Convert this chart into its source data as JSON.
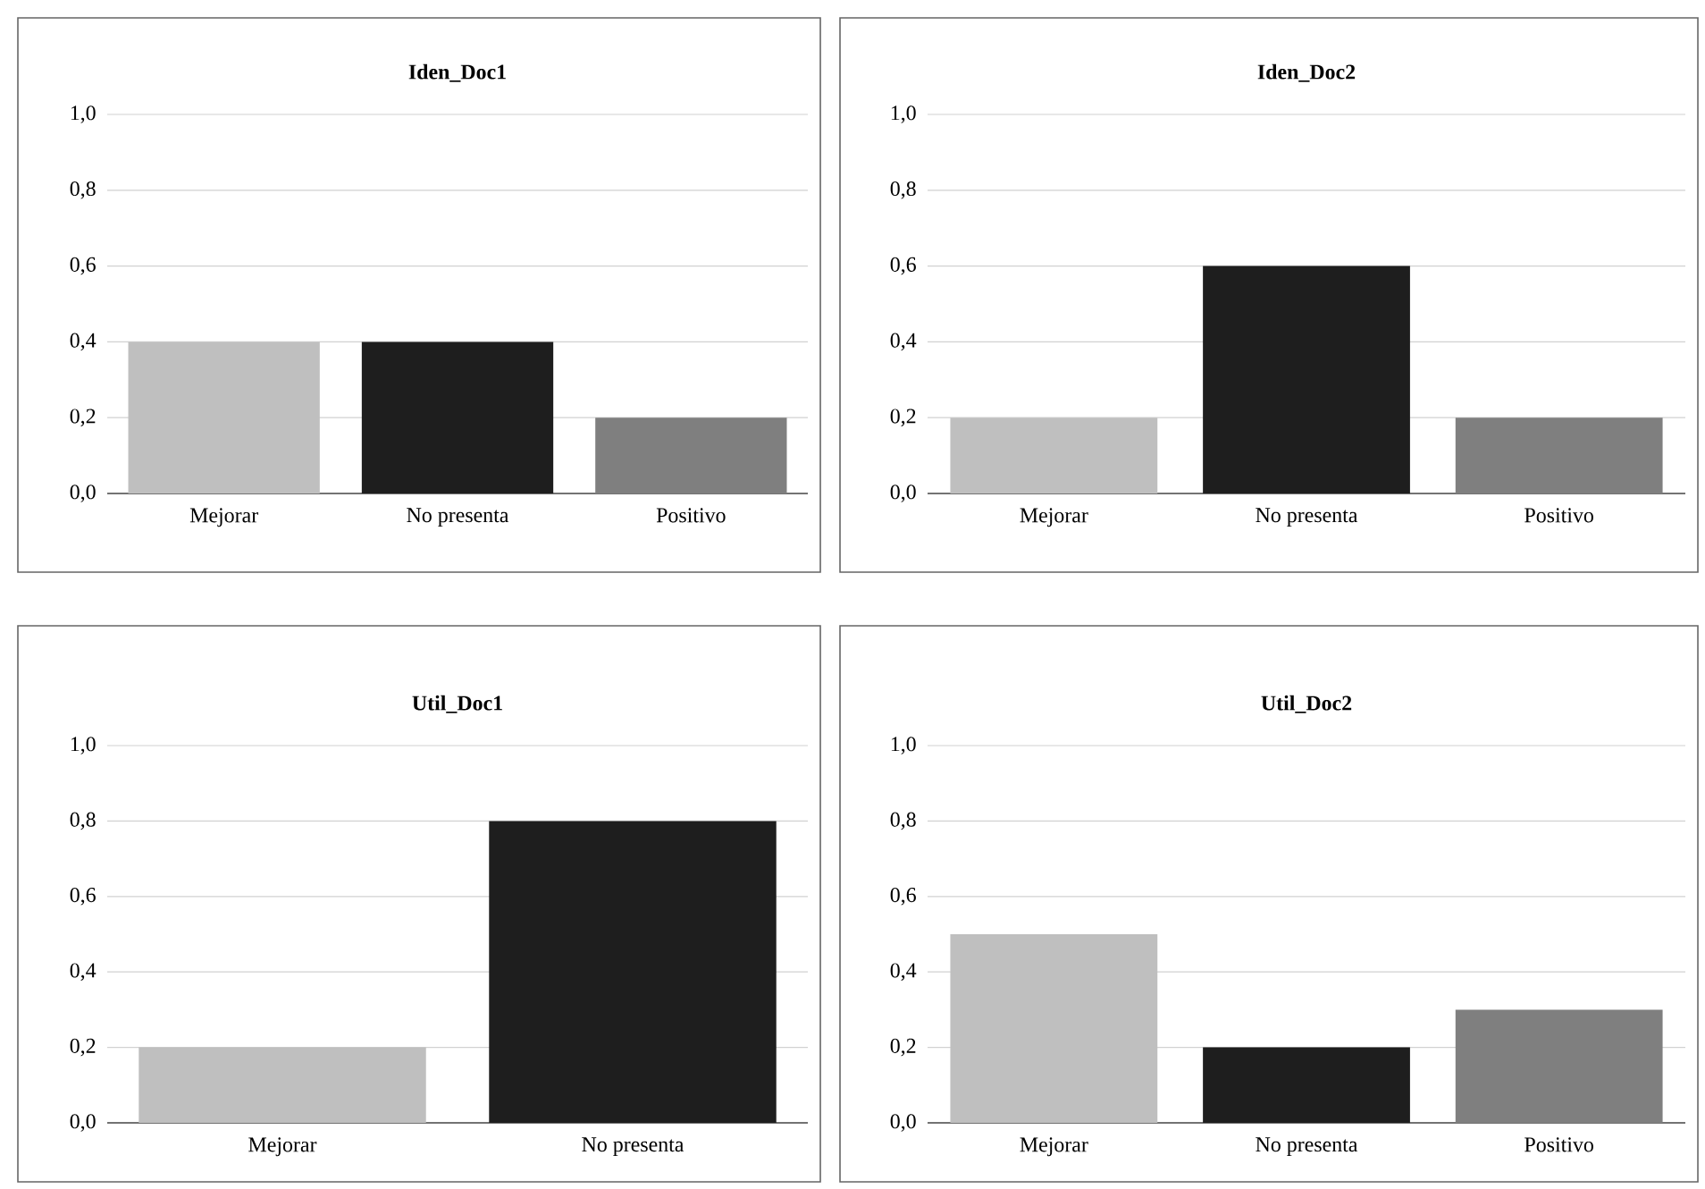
{
  "chart_data": [
    {
      "type": "bar",
      "title": "Iden_Doc1",
      "categories": [
        "Mejorar",
        "No presenta",
        "Positivo"
      ],
      "values": [
        0.4,
        0.4,
        0.2
      ],
      "colors": [
        "#bfbfbf",
        "#1e1e1e",
        "#7f7f7f"
      ],
      "ylim": [
        0,
        1
      ],
      "yticks": [
        {
          "value": 0,
          "label": "0,0"
        },
        {
          "value": 0.2,
          "label": "0,2"
        },
        {
          "value": 0.4,
          "label": "0,4"
        },
        {
          "value": 0.6,
          "label": "0,6"
        },
        {
          "value": 0.8,
          "label": "0,8"
        },
        {
          "value": 1,
          "label": "1,0"
        }
      ],
      "grid": "y"
    },
    {
      "type": "bar",
      "title": "Iden_Doc2",
      "categories": [
        "Mejorar",
        "No presenta",
        "Positivo"
      ],
      "values": [
        0.2,
        0.6,
        0.2
      ],
      "colors": [
        "#bfbfbf",
        "#1e1e1e",
        "#7f7f7f"
      ],
      "ylim": [
        0,
        1
      ],
      "yticks": [
        {
          "value": 0,
          "label": "0,0"
        },
        {
          "value": 0.2,
          "label": "0,2"
        },
        {
          "value": 0.4,
          "label": "0,4"
        },
        {
          "value": 0.6,
          "label": "0,6"
        },
        {
          "value": 0.8,
          "label": "0,8"
        },
        {
          "value": 1,
          "label": "1,0"
        }
      ],
      "grid": "y"
    },
    {
      "type": "bar",
      "title": "Util_Doc1",
      "categories": [
        "Mejorar",
        "No presenta"
      ],
      "values": [
        0.2,
        0.8
      ],
      "colors": [
        "#bfbfbf",
        "#1e1e1e"
      ],
      "ylim": [
        0,
        1
      ],
      "yticks": [
        {
          "value": 0,
          "label": "0,0"
        },
        {
          "value": 0.2,
          "label": "0,2"
        },
        {
          "value": 0.4,
          "label": "0,4"
        },
        {
          "value": 0.6,
          "label": "0,6"
        },
        {
          "value": 0.8,
          "label": "0,8"
        },
        {
          "value": 1,
          "label": "1,0"
        }
      ],
      "grid": "y"
    },
    {
      "type": "bar",
      "title": "Util_Doc2",
      "categories": [
        "Mejorar",
        "No presenta",
        "Positivo"
      ],
      "values": [
        0.5,
        0.2,
        0.3
      ],
      "colors": [
        "#bfbfbf",
        "#1e1e1e",
        "#7f7f7f"
      ],
      "ylim": [
        0,
        1
      ],
      "yticks": [
        {
          "value": 0,
          "label": "0,0"
        },
        {
          "value": 0.2,
          "label": "0,2"
        },
        {
          "value": 0.4,
          "label": "0,4"
        },
        {
          "value": 0.6,
          "label": "0,6"
        },
        {
          "value": 0.8,
          "label": "0,8"
        },
        {
          "value": 1,
          "label": "1,0"
        }
      ],
      "grid": "y"
    }
  ]
}
